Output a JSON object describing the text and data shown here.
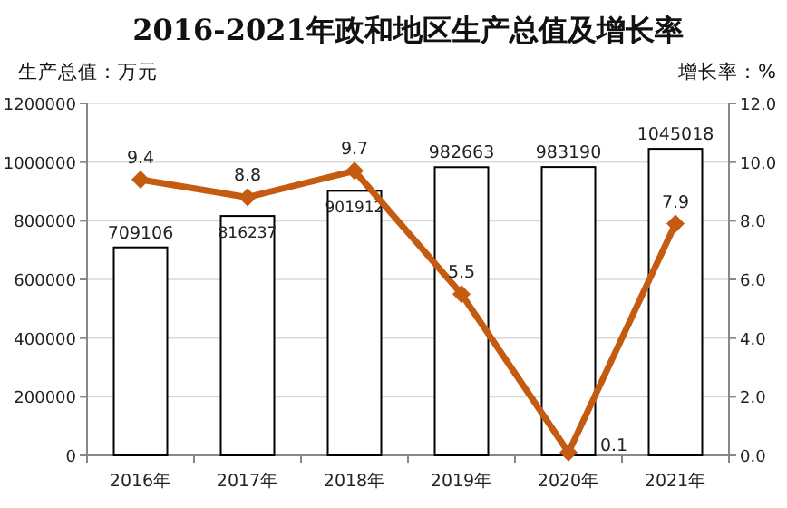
{
  "chart_data": {
    "type": "bar",
    "title": "2016-2021年政和地区生产总值及增长率",
    "ylabel": "生产总值：万元",
    "y2label": "增长率：%",
    "categories": [
      "2016年",
      "2017年",
      "2018年",
      "2019年",
      "2020年",
      "2021年"
    ],
    "series": [
      {
        "color": "#ffffff",
        "values": [
          709106,
          816237,
          901912,
          982663,
          983190,
          1045018
        ]
      },
      {
        "type": "line",
        "axis": "y2",
        "color": "#c55a11",
        "marker": "diamond",
        "values": [
          9.4,
          8.8,
          9.7,
          5.5,
          0.1,
          7.9
        ]
      }
    ],
    "ylim": [
      0,
      1200000
    ],
    "yticks": [
      0,
      200000,
      400000,
      600000,
      800000,
      1000000,
      1200000
    ],
    "y2lim": [
      0,
      12
    ],
    "y2ticks": [
      {
        "value": 0,
        "label": "0.0"
      },
      {
        "value": 2,
        "label": "2.0"
      },
      {
        "value": 4,
        "label": "4.0"
      },
      {
        "value": 6,
        "label": "6.0"
      },
      {
        "value": 8,
        "label": "8.0"
      },
      {
        "value": 10,
        "label": "10.0"
      },
      {
        "value": 12,
        "label": "12.0"
      }
    ],
    "grid": "y",
    "data_labels": true
  }
}
